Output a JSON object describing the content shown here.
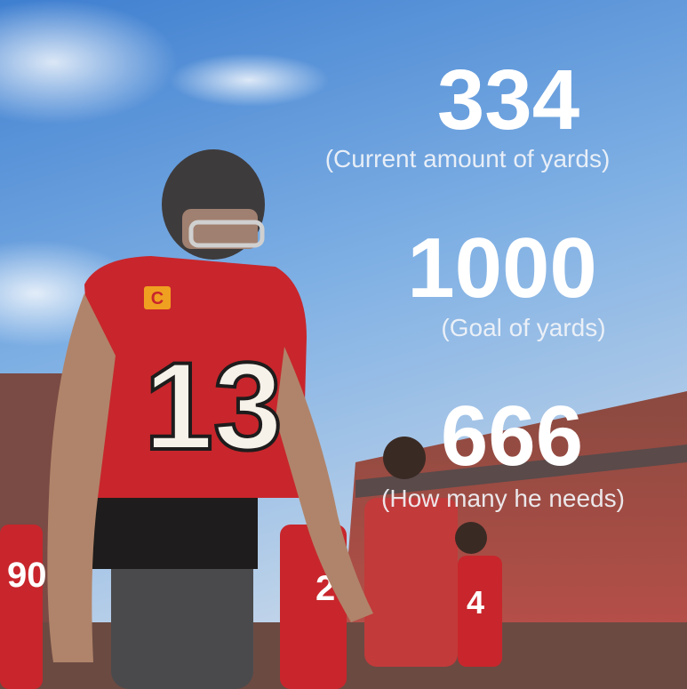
{
  "stats": [
    {
      "value": 334,
      "label": "(Current amount of yards)"
    },
    {
      "value": 1000,
      "label": "(Goal of yards)"
    },
    {
      "value": 666,
      "label": "(How many he needs)"
    }
  ],
  "photo": {
    "jersey_number": "13",
    "captain_patch": "C",
    "background_numbers": [
      "90",
      "2",
      "4"
    ]
  }
}
